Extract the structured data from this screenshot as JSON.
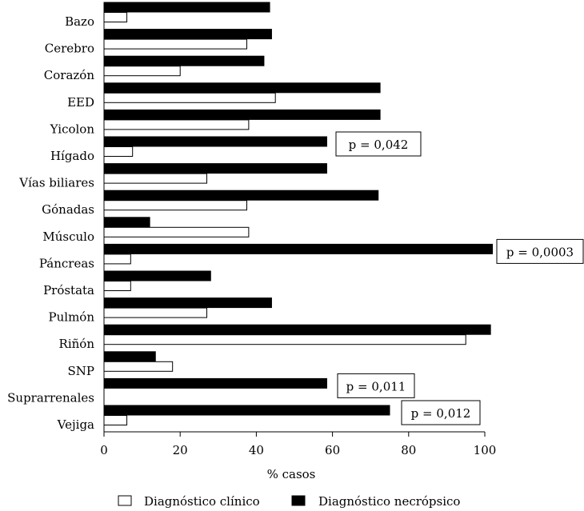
{
  "chart_data": {
    "type": "bar",
    "orientation": "horizontal",
    "categories": [
      "Bazo",
      "Cerebro",
      "Corazón",
      "EED",
      "Yicolon",
      "Hígado",
      "Vías biliares",
      "Gónadas",
      "Músculo",
      "Páncreas",
      "Próstata",
      "Pulmón",
      "Riñón",
      "SNP",
      "Suprarrenales",
      "Vejiga"
    ],
    "series": [
      {
        "name": "Diagnóstico clínico",
        "color": "#ffffff",
        "values": [
          6,
          37.5,
          20,
          45,
          38,
          7.5,
          27,
          37.5,
          38,
          7,
          7,
          27,
          95,
          18,
          0,
          6
        ]
      },
      {
        "name": "Diagnóstico necrópsico",
        "color": "#000000",
        "values": [
          43.5,
          44,
          42,
          72.5,
          72.5,
          58.5,
          58.5,
          72,
          12,
          102,
          28,
          44,
          101.5,
          13.5,
          58.5,
          75
        ]
      }
    ],
    "xlabel": "% casos",
    "ylabel": "",
    "xlim": [
      0,
      100
    ],
    "xticks": [
      0,
      20,
      40,
      60,
      80,
      100
    ],
    "grid": false,
    "legend": "bottom",
    "annotations": [
      {
        "category": "Hígado",
        "text": "p = 0,042"
      },
      {
        "category": "Páncreas",
        "text": "p = 0,0003"
      },
      {
        "category": "Suprarrenales",
        "text": "p = 0,011"
      },
      {
        "category": "Vejiga",
        "text": "p = 0,012"
      }
    ]
  }
}
